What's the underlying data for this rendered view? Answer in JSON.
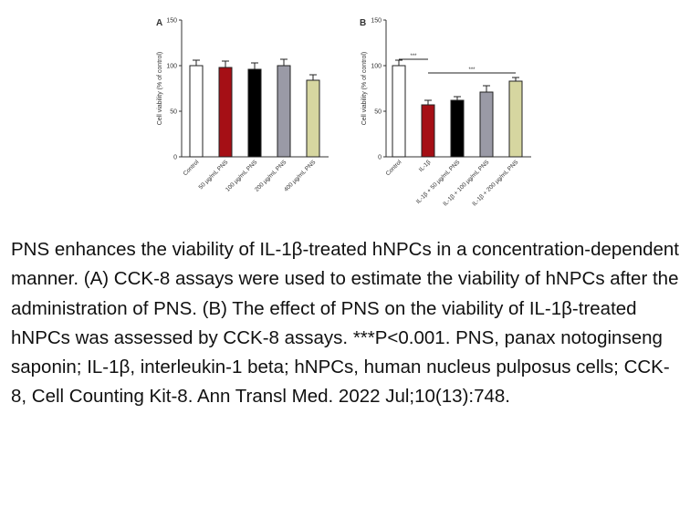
{
  "chart_data": [
    {
      "type": "bar",
      "panel_label": "A",
      "categories": [
        "Control",
        "50 μg/mL PNS",
        "100 μg/mL PNS",
        "200 μg/mL PNS",
        "400 μg/mL PNS"
      ],
      "values": [
        100,
        98,
        96,
        100,
        84
      ],
      "errors": [
        6,
        7,
        7,
        7,
        6
      ],
      "colors": [
        "#ffffff",
        "#a50f15",
        "#000000",
        "#9a9aa6",
        "#d6d6a0"
      ],
      "ylabel": "Cell viability (% of control)",
      "ylim": [
        0,
        150
      ],
      "yticks": [
        "0",
        "50",
        "100",
        "150"
      ],
      "significance": []
    },
    {
      "type": "bar",
      "panel_label": "B",
      "categories": [
        "Control",
        "IL-1β",
        "IL-1β + 50 μg/mL PNS",
        "IL-1β + 100 μg/mL PNS",
        "IL-1β + 200 μg/mL PNS"
      ],
      "values": [
        100,
        57,
        62,
        71,
        83
      ],
      "errors": [
        6,
        5,
        4,
        7,
        4
      ],
      "colors": [
        "#ffffff",
        "#a50f15",
        "#000000",
        "#9a9aa6",
        "#d6d6a0"
      ],
      "ylabel": "Cell viability (% of control)",
      "ylim": [
        0,
        150
      ],
      "yticks": [
        "0",
        "50",
        "100",
        "150"
      ],
      "significance": [
        {
          "from": 0,
          "to": 1,
          "label": "***"
        },
        {
          "from": 1,
          "to": 4,
          "label": "***"
        }
      ]
    }
  ],
  "caption": "PNS enhances the viability of IL-1β-treated hNPCs in a concentration-dependent manner. (A) CCK-8 assays were used to estimate the viability of hNPCs after the administration of PNS. (B) The effect of PNS on the viability of IL-1β-treated hNPCs was assessed by CCK-8 assays. ***P<0.001. PNS, panax notoginseng saponin; IL-1β, interleukin-1 beta; hNPCs, human nucleus pulposus cells; CCK-8, Cell Counting Kit-8. Ann Transl Med. 2022 Jul;10(13):748."
}
